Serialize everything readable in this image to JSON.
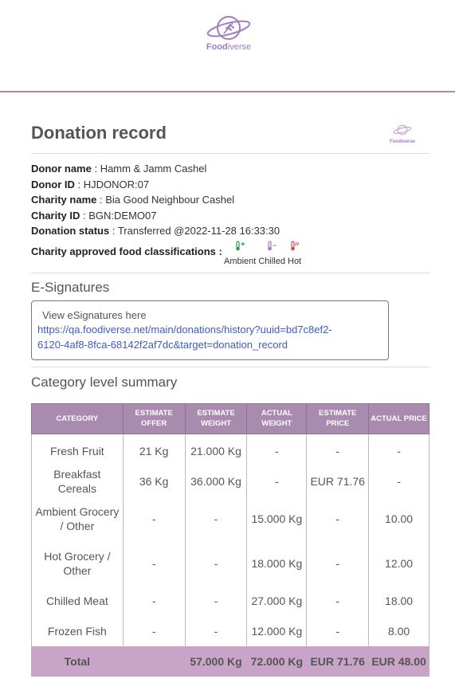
{
  "brand": {
    "name_bold": "Food",
    "name_light": "iverse",
    "accent": "#a07bbf"
  },
  "record": {
    "title": "Donation record",
    "fields": [
      {
        "label": "Donor name",
        "value": "Hamm & Jamm Cashel"
      },
      {
        "label": "Donor ID",
        "value": "HJDONOR:07"
      },
      {
        "label": "Charity name",
        "value": "Bia Good Neighbour Cashel"
      },
      {
        "label": "Charity ID",
        "value": "BGN:DEMO07"
      },
      {
        "label": "Donation status",
        "value": "Transferred @2022-11-28 16:33:30"
      }
    ],
    "classifications_label": "Charity approved food classifications :",
    "classifications": [
      {
        "name": "Ambient",
        "icon": "thermometer-plus-icon",
        "color": "#2e9b5a"
      },
      {
        "name": "Chilled",
        "icon": "thermometer-minus-icon",
        "color": "#a07bbf"
      },
      {
        "name": "Hot",
        "icon": "thermometer-hot-icon",
        "color": "#d24a4a"
      }
    ]
  },
  "esignatures": {
    "title": "E-Signatures",
    "view_text": "View eSignatures here",
    "link_line1": "https://qa.foodiverse.net/main/donations/history?uuid=bd7c8ef2-",
    "link_line2": "6120-4af8-8fca-68142f2af7dc&target=donation_record"
  },
  "summary": {
    "title": "Category level summary",
    "headers": [
      "CATEGORY",
      "ESTIMATE OFFER",
      "ESTIMATE WEIGHT",
      "ACTUAL WEIGHT",
      "ESTIMATE PRICE",
      "ACTUAL PRICE"
    ],
    "rows": [
      [
        "Fresh Fruit",
        "21 Kg",
        "21.000 Kg",
        "-",
        "-",
        "-"
      ],
      [
        "Breakfast Cereals",
        "36 Kg",
        "36.000 Kg",
        "-",
        "EUR 71.76",
        "-"
      ],
      [
        "Ambient Grocery / Other",
        "-",
        "-",
        "15.000 Kg",
        "-",
        "10.00"
      ],
      [
        "Hot Grocery / Other",
        "-",
        "-",
        "18.000 Kg",
        "-",
        "12.00"
      ],
      [
        "Chilled Meat",
        "-",
        "-",
        "27.000 Kg",
        "-",
        "18.00"
      ],
      [
        "Frozen Fish",
        "-",
        "-",
        "12.000 Kg",
        "-",
        "8.00"
      ]
    ],
    "total": [
      "Total",
      "",
      "57.000 Kg",
      "72.000 Kg",
      "EUR 71.76",
      "EUR 48.00"
    ]
  }
}
